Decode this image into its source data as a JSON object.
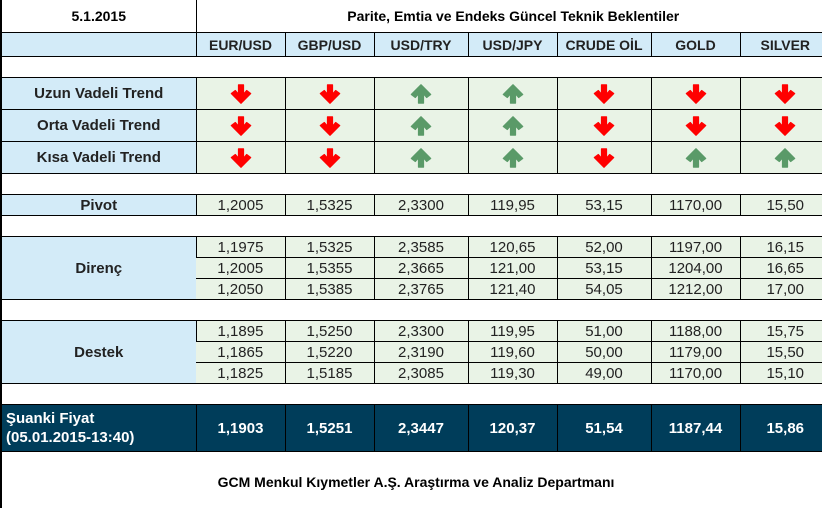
{
  "header": {
    "date": "5.1.2015",
    "title": "Parite, Emtia ve Endeks Güncel Teknik Beklentiler"
  },
  "columns": [
    "EUR/USD",
    "GBP/USD",
    "USD/TRY",
    "USD/JPY",
    "CRUDE OİL",
    "GOLD",
    "SILVER"
  ],
  "colors": {
    "label_bg": "#d3ebf8",
    "cell_bg": "#e9f3e6",
    "price_bg": "#003d5a",
    "arrow_down": "#ff0000",
    "arrow_up": "#5a9a68"
  },
  "trends": [
    {
      "label": "Uzun Vadeli Trend",
      "values": [
        "down",
        "down",
        "up",
        "up",
        "down",
        "down",
        "down"
      ]
    },
    {
      "label": "Orta Vadeli Trend",
      "values": [
        "down",
        "down",
        "up",
        "up",
        "down",
        "down",
        "down"
      ]
    },
    {
      "label": "Kısa Vadeli Trend",
      "values": [
        "down",
        "down",
        "up",
        "up",
        "down",
        "up",
        "up"
      ]
    }
  ],
  "pivot": {
    "label": "Pivot",
    "values": [
      "1,2005",
      "1,5325",
      "2,3300",
      "119,95",
      "53,15",
      "1170,00",
      "15,50"
    ]
  },
  "direnc": {
    "label": "Direnç",
    "rows": [
      [
        "1,1975",
        "1,5325",
        "2,3585",
        "120,65",
        "52,00",
        "1197,00",
        "16,15"
      ],
      [
        "1,2005",
        "1,5355",
        "2,3665",
        "121,00",
        "53,15",
        "1204,00",
        "16,65"
      ],
      [
        "1,2050",
        "1,5385",
        "2,3765",
        "121,40",
        "54,05",
        "1212,00",
        "17,00"
      ]
    ]
  },
  "destek": {
    "label": "Destek",
    "rows": [
      [
        "1,1895",
        "1,5250",
        "2,3300",
        "119,95",
        "51,00",
        "1188,00",
        "15,75"
      ],
      [
        "1,1865",
        "1,5220",
        "2,3190",
        "119,60",
        "50,00",
        "1179,00",
        "15,50"
      ],
      [
        "1,1825",
        "1,5185",
        "2,3085",
        "119,30",
        "49,00",
        "1170,00",
        "15,10"
      ]
    ]
  },
  "current_price": {
    "label_line1": "Şuanki Fiyat",
    "label_line2": "(05.01.2015-13:40)",
    "values": [
      "1,1903",
      "1,5251",
      "2,3447",
      "120,37",
      "51,54",
      "1187,44",
      "15,86"
    ]
  },
  "footer": {
    "text": "GCM Menkul Kıymetler A.Ş. Araştırma ve Analiz Departmanı"
  }
}
